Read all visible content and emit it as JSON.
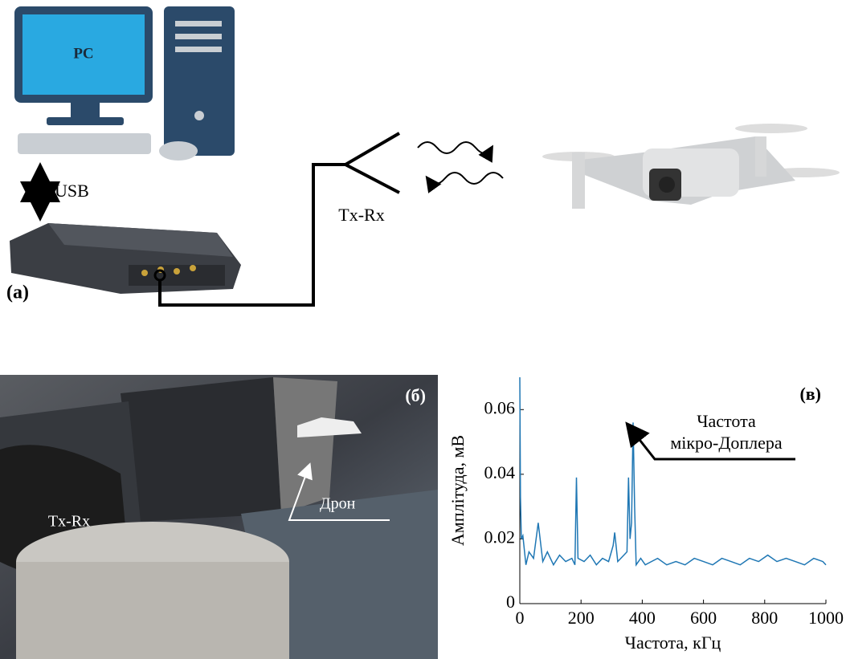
{
  "diagram": {
    "pc_label": "PC",
    "usb_label": "USB",
    "antenna_label": "Tx-Rx",
    "panel_label": "(a)"
  },
  "photo": {
    "panel_label": "(б)",
    "antenna_label": "Tx-Rx",
    "drone_label": "Дрон"
  },
  "chart_data": {
    "type": "line",
    "panel_label": "(в)",
    "x_label": "Частота, кГц",
    "y_label": "Амплітуда, мВ",
    "annotation": [
      "Частота",
      "мікро-Доплера"
    ],
    "x": [
      0,
      2,
      5,
      10,
      20,
      30,
      45,
      60,
      75,
      90,
      110,
      130,
      150,
      170,
      180,
      185,
      190,
      210,
      230,
      250,
      270,
      290,
      305,
      310,
      320,
      340,
      350,
      355,
      360,
      365,
      370,
      375,
      380,
      395,
      410,
      430,
      450,
      480,
      510,
      540,
      570,
      600,
      630,
      660,
      690,
      720,
      750,
      780,
      810,
      840,
      870,
      900,
      930,
      960,
      990,
      1000
    ],
    "values": [
      0.07,
      0.033,
      0.02,
      0.021,
      0.012,
      0.016,
      0.014,
      0.025,
      0.013,
      0.016,
      0.012,
      0.015,
      0.013,
      0.014,
      0.012,
      0.039,
      0.014,
      0.013,
      0.015,
      0.012,
      0.014,
      0.013,
      0.018,
      0.022,
      0.013,
      0.015,
      0.016,
      0.039,
      0.02,
      0.025,
      0.056,
      0.03,
      0.012,
      0.014,
      0.012,
      0.013,
      0.014,
      0.012,
      0.013,
      0.012,
      0.014,
      0.013,
      0.012,
      0.014,
      0.013,
      0.012,
      0.014,
      0.013,
      0.015,
      0.013,
      0.014,
      0.013,
      0.012,
      0.014,
      0.013,
      0.012
    ],
    "color": "#1f77b4",
    "xlim": [
      0,
      1000
    ],
    "ylim": [
      0,
      0.07
    ],
    "xticks": [
      0,
      200,
      400,
      600,
      800,
      1000
    ],
    "yticks": [
      0,
      0.02,
      0.04,
      0.06
    ]
  }
}
